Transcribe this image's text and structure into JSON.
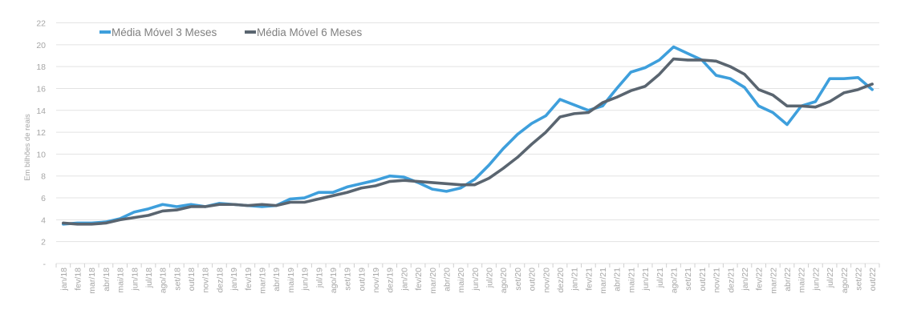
{
  "chart_data": {
    "type": "line",
    "title": "",
    "ylabel": "Em bilhões de reais",
    "ylim": [
      0,
      22
    ],
    "yticks": [
      0,
      2,
      4,
      6,
      8,
      10,
      12,
      14,
      16,
      18,
      20,
      22
    ],
    "ytick_labels": [
      "-",
      "2",
      "4",
      "6",
      "8",
      "10",
      "12",
      "14",
      "16",
      "18",
      "20",
      "22"
    ],
    "grid": true,
    "legend_position": "top-left",
    "categories": [
      "jan/18",
      "fev/18",
      "mar/18",
      "abr/18",
      "mai/18",
      "jun/18",
      "jul/18",
      "ago/18",
      "set/18",
      "out/18",
      "nov/18",
      "dez/18",
      "jan/19",
      "fev/19",
      "mar/19",
      "abr/19",
      "mai/19",
      "jun/19",
      "jul/19",
      "ago/19",
      "set/19",
      "out/19",
      "nov/19",
      "dez/19",
      "jan/20",
      "fev/20",
      "mar/20",
      "abr/20",
      "mai/20",
      "jun/20",
      "jul/20",
      "ago/20",
      "set/20",
      "out/20",
      "nov/20",
      "dez/20",
      "jan/21",
      "fev/21",
      "mar/21",
      "abr/21",
      "mai/21",
      "jun/21",
      "jul/21",
      "ago/21",
      "set/21",
      "out/21",
      "nov/21",
      "dez/21",
      "jan/22",
      "fev/22",
      "mar/22",
      "abr/22",
      "mai/22",
      "jun/22",
      "jul/22",
      "ago/22",
      "set/22",
      "out/22"
    ],
    "series": [
      {
        "name": "Média Móvel 3 Meses",
        "color": "#3e9fdc",
        "values": [
          3.6,
          3.7,
          3.7,
          3.8,
          4.1,
          4.7,
          5.0,
          5.4,
          5.2,
          5.4,
          5.2,
          5.5,
          5.4,
          5.3,
          5.2,
          5.3,
          5.9,
          6.0,
          6.5,
          6.5,
          7.0,
          7.3,
          7.6,
          8.0,
          7.9,
          7.4,
          6.8,
          6.6,
          6.9,
          7.7,
          9.0,
          10.5,
          11.8,
          12.8,
          13.5,
          15.0,
          14.5,
          14.0,
          14.4,
          16.0,
          17.5,
          17.9,
          18.6,
          19.8,
          19.2,
          18.6,
          17.2,
          16.9,
          16.1,
          14.4,
          13.8,
          12.7,
          14.4,
          14.8,
          16.9,
          16.9,
          17.0,
          15.9
        ]
      },
      {
        "name": "Média Móvel 6 Meses",
        "color": "#5a6570",
        "values": [
          3.7,
          3.6,
          3.6,
          3.7,
          4.0,
          4.2,
          4.4,
          4.8,
          4.9,
          5.2,
          5.2,
          5.4,
          5.4,
          5.3,
          5.4,
          5.3,
          5.6,
          5.6,
          5.9,
          6.2,
          6.5,
          6.9,
          7.1,
          7.5,
          7.6,
          7.5,
          7.4,
          7.3,
          7.2,
          7.2,
          7.8,
          8.7,
          9.7,
          10.9,
          12.0,
          13.4,
          13.7,
          13.8,
          14.7,
          15.2,
          15.8,
          16.2,
          17.3,
          18.7,
          18.6,
          18.6,
          18.5,
          18.0,
          17.3,
          15.9,
          15.4,
          14.4,
          14.4,
          14.3,
          14.8,
          15.6,
          15.9,
          16.4
        ]
      }
    ]
  }
}
